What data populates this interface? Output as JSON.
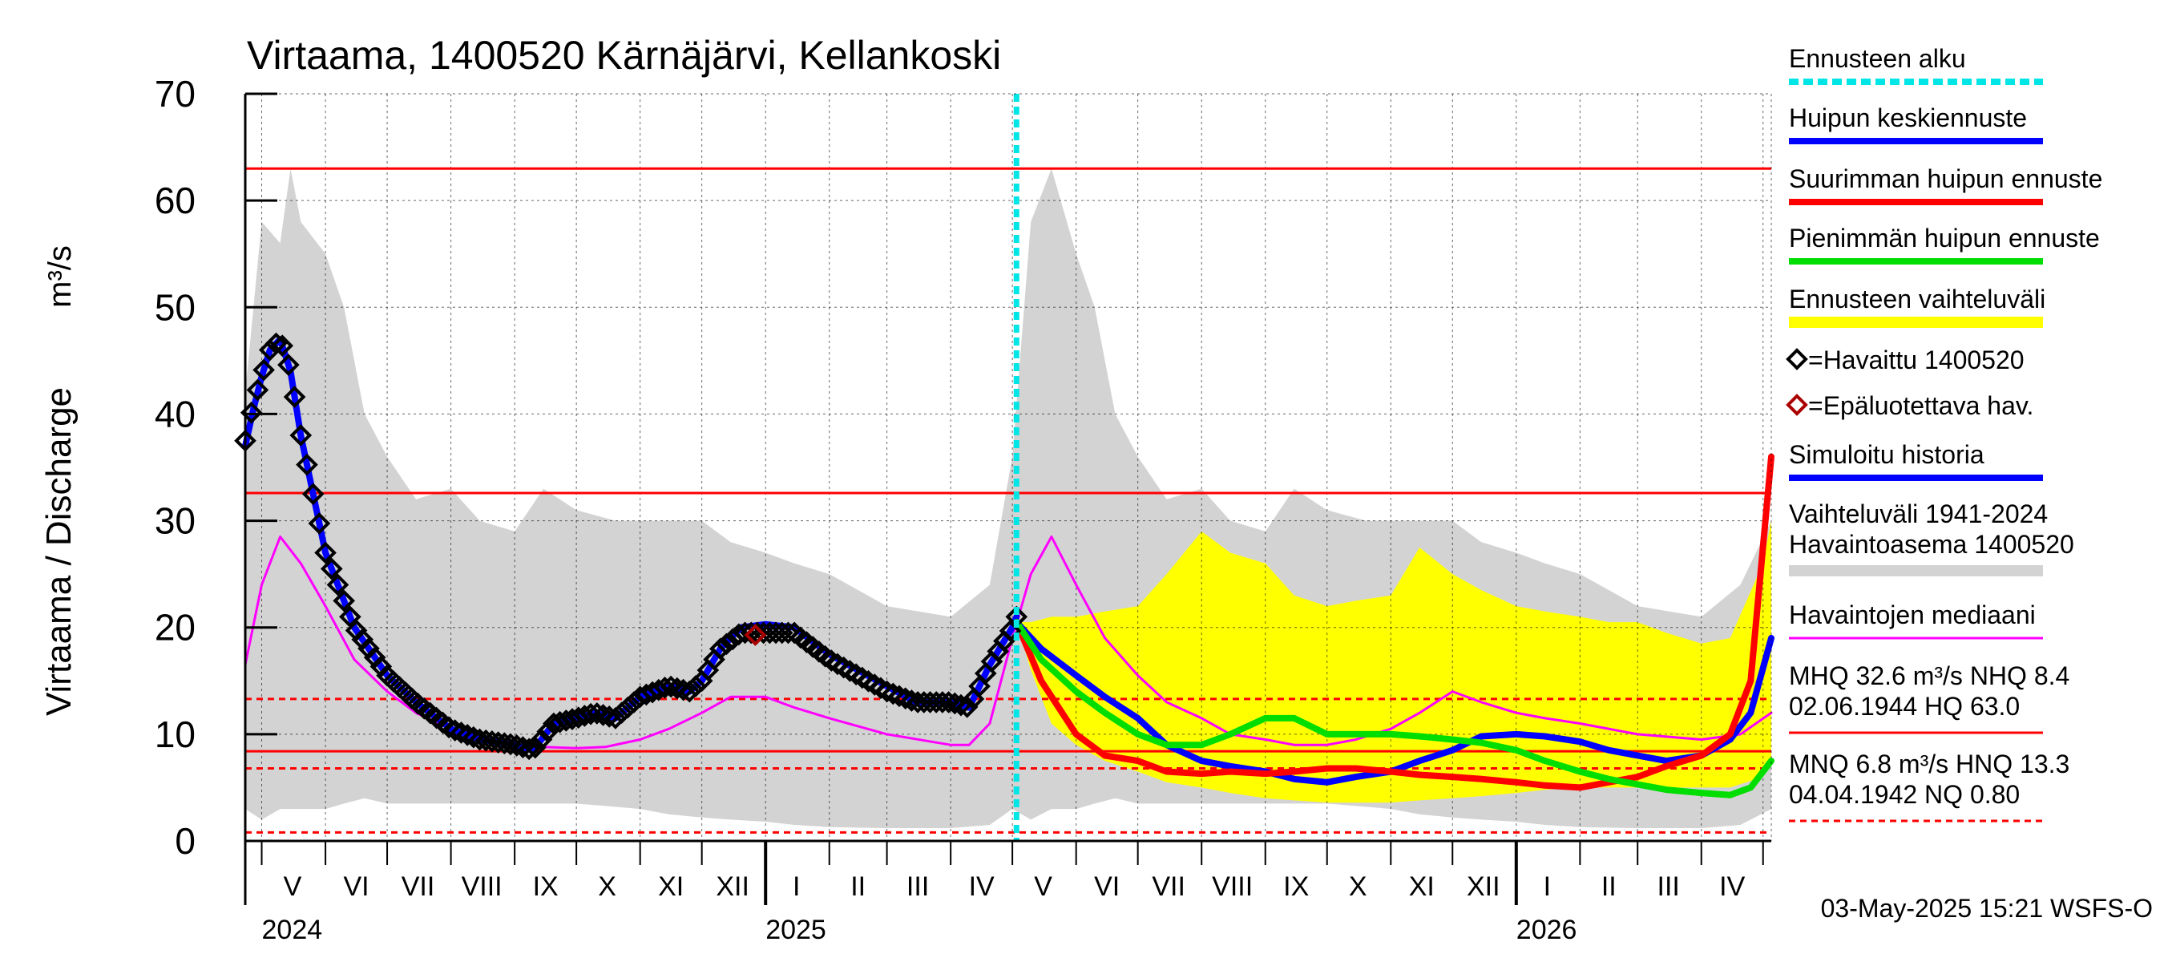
{
  "chart_data": {
    "type": "line",
    "title": "Virtaama, 1400520 Kärnäjärvi, Kellankoski",
    "ylabel": "Virtaama / Discharge",
    "yunit": "m³/s",
    "ylim": [
      0,
      70
    ],
    "yticks": [
      "0",
      "10",
      "20",
      "30",
      "40",
      "50",
      "60",
      "70"
    ],
    "xlim": [
      "2024-04-23",
      "2026-05-05"
    ],
    "grid": true,
    "x_month_labels": [
      {
        "label": "V",
        "date": "2024-05-16"
      },
      {
        "label": "VI",
        "date": "2024-06-16"
      },
      {
        "label": "VII",
        "date": "2024-07-16"
      },
      {
        "label": "VIII",
        "date": "2024-08-16"
      },
      {
        "label": "IX",
        "date": "2024-09-16"
      },
      {
        "label": "X",
        "date": "2024-10-16"
      },
      {
        "label": "XI",
        "date": "2024-11-16"
      },
      {
        "label": "XII",
        "date": "2024-12-16"
      },
      {
        "label": "I",
        "date": "2025-01-16"
      },
      {
        "label": "II",
        "date": "2025-02-15"
      },
      {
        "label": "III",
        "date": "2025-03-16"
      },
      {
        "label": "IV",
        "date": "2025-04-16"
      },
      {
        "label": "V",
        "date": "2025-05-16"
      },
      {
        "label": "VI",
        "date": "2025-06-16"
      },
      {
        "label": "VII",
        "date": "2025-07-16"
      },
      {
        "label": "VIII",
        "date": "2025-08-16"
      },
      {
        "label": "IX",
        "date": "2025-09-16"
      },
      {
        "label": "X",
        "date": "2025-10-16"
      },
      {
        "label": "XI",
        "date": "2025-11-16"
      },
      {
        "label": "XII",
        "date": "2025-12-16"
      },
      {
        "label": "I",
        "date": "2026-01-16"
      },
      {
        "label": "II",
        "date": "2026-02-15"
      },
      {
        "label": "III",
        "date": "2026-03-16"
      },
      {
        "label": "IV",
        "date": "2026-04-16"
      }
    ],
    "x_month_boundaries": [
      "2024-05-01",
      "2024-06-01",
      "2024-07-01",
      "2024-08-01",
      "2024-09-01",
      "2024-10-01",
      "2024-11-01",
      "2024-12-01",
      "2025-01-01",
      "2025-02-01",
      "2025-03-01",
      "2025-04-01",
      "2025-05-01",
      "2025-06-01",
      "2025-07-01",
      "2025-08-01",
      "2025-09-01",
      "2025-10-01",
      "2025-11-01",
      "2025-12-01",
      "2026-01-01",
      "2026-02-01",
      "2026-03-01",
      "2026-04-01",
      "2026-05-01"
    ],
    "x_year_labels": [
      {
        "label": "2024",
        "date": "2024-05-01"
      },
      {
        "label": "2025",
        "date": "2025-01-01"
      },
      {
        "label": "2026",
        "date": "2026-01-01"
      }
    ],
    "forecast_start": "2025-05-03",
    "reference_lines": [
      {
        "name": "HQ",
        "value": 63.0,
        "style": "solid",
        "color": "#ff0000"
      },
      {
        "name": "MHQ",
        "value": 32.6,
        "style": "solid",
        "color": "#ff0000"
      },
      {
        "name": "HNQ",
        "value": 13.3,
        "style": "dashed",
        "color": "#ff0000"
      },
      {
        "name": "NHQ",
        "value": 8.4,
        "style": "solid",
        "color": "#ff0000"
      },
      {
        "name": "MNQ",
        "value": 6.8,
        "style": "dashed",
        "color": "#ff0000"
      },
      {
        "name": "NQ",
        "value": 0.8,
        "style": "dashed",
        "color": "#ff0000"
      }
    ],
    "series": [
      {
        "name": "Vaihteluväli 1941-2024 Havaintoasema 1400520",
        "kind": "band",
        "color": "#d3d3d3",
        "x": [
          "2024-04-23",
          "2024-05-01",
          "2024-05-10",
          "2024-05-15",
          "2024-05-20",
          "2024-06-01",
          "2024-06-10",
          "2024-06-20",
          "2024-07-01",
          "2024-07-15",
          "2024-08-01",
          "2024-08-15",
          "2024-09-01",
          "2024-09-15",
          "2024-10-01",
          "2024-10-20",
          "2024-11-01",
          "2024-11-15",
          "2024-12-01",
          "2024-12-15",
          "2025-01-01",
          "2025-01-15",
          "2025-02-01",
          "2025-03-01",
          "2025-04-01",
          "2025-04-20",
          "2025-05-01",
          "2025-05-10",
          "2025-05-20",
          "2025-06-01",
          "2025-06-10",
          "2025-06-20",
          "2025-07-01",
          "2025-07-15",
          "2025-08-01",
          "2025-08-15",
          "2025-09-01",
          "2025-09-15",
          "2025-10-01",
          "2025-10-20",
          "2025-11-01",
          "2025-11-15",
          "2025-12-01",
          "2025-12-15",
          "2026-01-01",
          "2026-01-15",
          "2026-02-01",
          "2026-03-01",
          "2026-04-01",
          "2026-04-20",
          "2026-05-05"
        ],
        "upper": [
          42,
          58,
          56,
          63,
          58,
          55,
          50,
          40,
          36,
          32,
          33,
          30,
          29,
          33,
          31,
          30,
          30,
          30,
          30,
          28,
          27,
          26,
          25,
          22,
          21,
          24,
          36,
          58,
          63,
          55,
          50,
          40,
          36,
          32,
          33,
          30,
          29,
          33,
          31,
          30,
          30,
          30,
          30,
          28,
          27,
          26,
          25,
          22,
          21,
          24,
          30
        ],
        "lower": [
          3,
          2,
          3,
          3,
          3,
          3,
          3.5,
          4,
          3.5,
          3.5,
          3.5,
          3.5,
          3.5,
          3.5,
          3.5,
          3.2,
          3,
          2.5,
          2.2,
          2,
          1.8,
          1.5,
          1.3,
          1.2,
          1.2,
          1.5,
          3,
          2,
          3,
          3,
          3.5,
          4,
          3.5,
          3.5,
          3.5,
          3.5,
          3.5,
          3.5,
          3.5,
          3.2,
          3,
          2.5,
          2.2,
          2,
          1.8,
          1.5,
          1.3,
          1.2,
          1.2,
          1.5,
          3
        ]
      },
      {
        "name": "Ennusteen vaihteluväli",
        "kind": "band",
        "color": "#ffff00",
        "x": [
          "2025-05-03",
          "2025-05-10",
          "2025-05-20",
          "2025-06-01",
          "2025-06-15",
          "2025-07-01",
          "2025-07-15",
          "2025-08-01",
          "2025-08-15",
          "2025-09-01",
          "2025-09-15",
          "2025-10-01",
          "2025-10-15",
          "2025-11-01",
          "2025-11-15",
          "2025-12-01",
          "2025-12-15",
          "2026-01-01",
          "2026-01-15",
          "2026-02-01",
          "2026-02-15",
          "2026-03-01",
          "2026-03-15",
          "2026-04-01",
          "2026-04-15",
          "2026-05-01",
          "2026-05-05"
        ],
        "upper": [
          20.5,
          20.5,
          21,
          21,
          21.5,
          22,
          25,
          29,
          27,
          26,
          23,
          22,
          22.5,
          23,
          27.5,
          25,
          23.5,
          22,
          21.5,
          21,
          20.5,
          20.5,
          19.5,
          18.5,
          19,
          26,
          30
        ],
        "lower": [
          20.5,
          16,
          11,
          9,
          7.5,
          6.5,
          5.5,
          5,
          4.5,
          4,
          3.8,
          3.6,
          3.6,
          3.6,
          3.8,
          4,
          4.2,
          4.5,
          4.8,
          5,
          5,
          5,
          5,
          5,
          5,
          6,
          8
        ]
      },
      {
        "name": "Havaintojen mediaani",
        "kind": "line",
        "color": "#ff00ff",
        "x": [
          "2024-04-23",
          "2024-05-01",
          "2024-05-10",
          "2024-05-20",
          "2024-06-01",
          "2024-06-15",
          "2024-07-01",
          "2024-07-15",
          "2024-08-01",
          "2024-08-15",
          "2024-09-01",
          "2024-09-15",
          "2024-10-01",
          "2024-10-15",
          "2024-11-01",
          "2024-11-15",
          "2024-12-01",
          "2024-12-15",
          "2025-01-01",
          "2025-01-15",
          "2025-02-01",
          "2025-03-01",
          "2025-04-01",
          "2025-04-10",
          "2025-04-20",
          "2025-05-01",
          "2025-05-10",
          "2025-05-20",
          "2025-06-01",
          "2025-06-15",
          "2025-07-01",
          "2025-07-15",
          "2025-08-01",
          "2025-08-15",
          "2025-09-01",
          "2025-09-15",
          "2025-10-01",
          "2025-10-15",
          "2025-11-01",
          "2025-11-15",
          "2025-12-01",
          "2025-12-15",
          "2026-01-01",
          "2026-01-15",
          "2026-02-01",
          "2026-03-01",
          "2026-04-01",
          "2026-04-20",
          "2026-05-05"
        ],
        "y": [
          16.5,
          24,
          28.5,
          26,
          22,
          17,
          14,
          12,
          10.5,
          9.5,
          9,
          8.8,
          8.7,
          8.8,
          9.5,
          10.5,
          12,
          13.5,
          13.5,
          12.5,
          11.5,
          10,
          9,
          9,
          11,
          19,
          25,
          28.5,
          24,
          19,
          15.5,
          13,
          11.5,
          10,
          9.5,
          9,
          9,
          9.5,
          10.5,
          12,
          14,
          13,
          12,
          11.5,
          11,
          10,
          9.5,
          10,
          12
        ]
      },
      {
        "name": "Simuloitu historia",
        "kind": "line",
        "color": "#0000ff",
        "x": [
          "2024-04-23",
          "2024-04-27",
          "2024-05-01",
          "2024-05-05",
          "2024-05-10",
          "2024-05-15",
          "2024-05-20",
          "2024-06-01",
          "2024-06-15",
          "2024-07-01",
          "2024-07-15",
          "2024-08-01",
          "2024-08-15",
          "2024-09-01",
          "2024-09-10",
          "2024-09-20",
          "2024-10-01",
          "2024-10-10",
          "2024-10-20",
          "2024-11-01",
          "2024-11-15",
          "2024-11-25",
          "2024-12-01",
          "2024-12-10",
          "2024-12-20",
          "2025-01-01",
          "2025-01-15",
          "2025-02-01",
          "2025-02-15",
          "2025-03-01",
          "2025-03-15",
          "2025-03-25",
          "2025-04-01",
          "2025-04-10",
          "2025-04-20",
          "2025-05-01",
          "2025-05-03"
        ],
        "y": [
          37,
          40.5,
          43.5,
          46,
          47,
          44,
          38,
          27,
          20,
          15.5,
          13,
          10.5,
          9.5,
          9,
          8.5,
          11,
          11.5,
          12,
          11.5,
          13.5,
          14.5,
          14,
          15,
          18,
          20,
          20.3,
          20,
          17.5,
          16,
          14.5,
          13,
          13,
          13,
          12.5,
          16.5,
          20,
          21
        ]
      },
      {
        "name": "Havaittu 1400520",
        "kind": "markers",
        "color": "#000000",
        "x": [
          "2024-04-23",
          "2024-04-27",
          "2024-05-01",
          "2024-05-05",
          "2024-05-10",
          "2024-05-15",
          "2024-05-20",
          "2024-06-01",
          "2024-06-15",
          "2024-07-01",
          "2024-07-15",
          "2024-08-01",
          "2024-08-15",
          "2024-09-01",
          "2024-09-10",
          "2024-09-20",
          "2024-10-01",
          "2024-10-10",
          "2024-10-20",
          "2024-11-01",
          "2024-11-15",
          "2024-11-25",
          "2024-12-01",
          "2024-12-10",
          "2024-12-20",
          "2025-01-01",
          "2025-01-15",
          "2025-02-01",
          "2025-02-15",
          "2025-03-01",
          "2025-03-15",
          "2025-03-25",
          "2025-04-01",
          "2025-04-10",
          "2025-04-20",
          "2025-05-01",
          "2025-05-03"
        ],
        "y": [
          37.5,
          41,
          43.5,
          46,
          47,
          44,
          38,
          27,
          20,
          15.5,
          13,
          10.5,
          9.5,
          9,
          8.5,
          11,
          11.5,
          12,
          11.5,
          13.5,
          14.5,
          14,
          15,
          18,
          19.5,
          19.5,
          19.5,
          17,
          15.5,
          14,
          13,
          13,
          13,
          12.5,
          16.5,
          20,
          21
        ]
      },
      {
        "name": "Epäluotettava hav.",
        "kind": "markers",
        "color": "#aa0000",
        "x": [
          "2024-12-27"
        ],
        "y": [
          19.3
        ]
      },
      {
        "name": "Huipun keskiennuste",
        "kind": "line",
        "color": "#0000ff",
        "x": [
          "2025-05-03",
          "2025-05-15",
          "2025-06-01",
          "2025-06-15",
          "2025-07-01",
          "2025-07-15",
          "2025-08-01",
          "2025-08-15",
          "2025-09-01",
          "2025-09-15",
          "2025-10-01",
          "2025-10-15",
          "2025-11-01",
          "2025-11-15",
          "2025-12-01",
          "2025-12-15",
          "2026-01-01",
          "2026-01-15",
          "2026-02-01",
          "2026-02-15",
          "2026-03-01",
          "2026-03-15",
          "2026-04-01",
          "2026-04-15",
          "2026-04-25",
          "2026-05-05"
        ],
        "y": [
          20.5,
          18,
          15.5,
          13.5,
          11.5,
          9,
          7.5,
          7,
          6.5,
          5.8,
          5.5,
          6,
          6.5,
          7.5,
          8.5,
          9.8,
          10,
          9.8,
          9.3,
          8.5,
          8,
          7.5,
          8,
          9.5,
          12,
          19
        ]
      },
      {
        "name": "Suurimman huipun ennuste",
        "kind": "line",
        "color": "#ff0000",
        "x": [
          "2025-05-03",
          "2025-05-15",
          "2025-06-01",
          "2025-06-15",
          "2025-07-01",
          "2025-07-15",
          "2025-08-01",
          "2025-08-15",
          "2025-09-01",
          "2025-09-15",
          "2025-10-01",
          "2025-10-15",
          "2025-11-01",
          "2025-11-15",
          "2025-12-01",
          "2025-12-15",
          "2026-01-01",
          "2026-01-15",
          "2026-02-01",
          "2026-02-15",
          "2026-03-01",
          "2026-03-15",
          "2026-04-01",
          "2026-04-15",
          "2026-04-25",
          "2026-05-05"
        ],
        "y": [
          20.5,
          15,
          10,
          8,
          7.5,
          6.5,
          6.3,
          6.5,
          6.3,
          6.5,
          6.8,
          6.8,
          6.5,
          6.2,
          6,
          5.8,
          5.5,
          5.2,
          5,
          5.5,
          6,
          7,
          8,
          10,
          15,
          36
        ]
      },
      {
        "name": "Pienimmän huipun ennuste",
        "kind": "line",
        "color": "#00dd00",
        "x": [
          "2025-05-03",
          "2025-05-15",
          "2025-06-01",
          "2025-06-15",
          "2025-07-01",
          "2025-07-15",
          "2025-08-01",
          "2025-08-15",
          "2025-09-01",
          "2025-09-15",
          "2025-10-01",
          "2025-10-15",
          "2025-11-01",
          "2025-11-15",
          "2025-12-01",
          "2025-12-15",
          "2026-01-01",
          "2026-01-15",
          "2026-02-01",
          "2026-02-15",
          "2026-03-01",
          "2026-03-15",
          "2026-04-01",
          "2026-04-15",
          "2026-04-25",
          "2026-05-05"
        ],
        "y": [
          20.5,
          17,
          14,
          12,
          10,
          9,
          9,
          10,
          11.5,
          11.5,
          10,
          10,
          10,
          9.8,
          9.5,
          9.2,
          8.5,
          7.5,
          6.5,
          5.8,
          5.3,
          4.8,
          4.5,
          4.3,
          5,
          7.5
        ]
      }
    ],
    "legend": {
      "placement": "right",
      "entries": [
        {
          "label": "Ennusteen alku",
          "symbol": "dashed-line",
          "color": "#00e5e5"
        },
        {
          "label": "Huipun keskiennuste",
          "symbol": "line",
          "color": "#0000ff"
        },
        {
          "label": "Suurimman huipun ennuste",
          "symbol": "line",
          "color": "#ff0000"
        },
        {
          "label": "Pienimmän huipun ennuste",
          "symbol": "line",
          "color": "#00dd00"
        },
        {
          "label": "Ennusteen vaihteluväli",
          "symbol": "thick-line",
          "color": "#ffff00"
        },
        {
          "label": "=Havaittu 1400520",
          "symbol": "diamond",
          "color": "#000000"
        },
        {
          "label": "=Epäluotettava hav.",
          "symbol": "diamond",
          "color": "#aa0000"
        },
        {
          "label": "Simuloitu historia",
          "symbol": "line",
          "color": "#0000ff"
        },
        {
          "label": "Vaihteluväli 1941-2024",
          "label2": " Havaintoasema 1400520",
          "symbol": "thick-line",
          "color": "#d3d3d3"
        },
        {
          "label": "Havaintojen mediaani",
          "symbol": "line",
          "color": "#ff00ff"
        },
        {
          "label": "MHQ 32.6 m³/s NHQ  8.4",
          "label2": "02.06.1944 HQ 63.0",
          "symbol": "line",
          "color": "#ff0000"
        },
        {
          "label": "MNQ  6.8 m³/s HNQ 13.3",
          "label2": "04.04.1942 NQ 0.80",
          "symbol": "dashed-line",
          "color": "#ff0000"
        }
      ]
    },
    "footer": "03-May-2025 15:21 WSFS-O"
  }
}
